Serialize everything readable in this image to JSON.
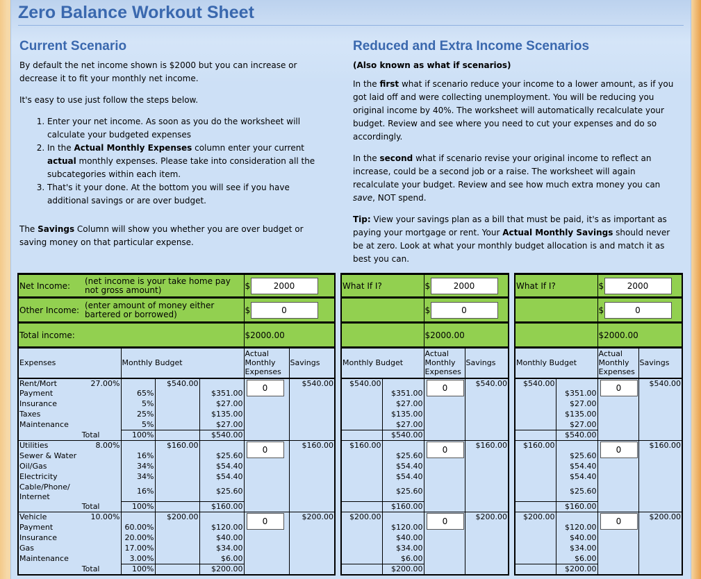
{
  "title": "Zero Balance Workout Sheet",
  "left": {
    "heading": "Current Scenario",
    "p1": "By default the net income shown is $2000 but you can increase or decrease it to fit your monthly net income.",
    "p2": "It's easy to use just follow the steps below.",
    "step1": "Enter your net income. As soon as you do the worksheet will calculate your budgeted expenses",
    "step2_a": "In the ",
    "step2_b": "Actual Monthly Expenses",
    "step2_c": " column enter your current ",
    "step2_d": "actual",
    "step2_e": " monthly expenses. Please take into consideration all the subcategories within each item.",
    "step3": "That's it your done. At the bottom you will see if you have additional savings or are over budget.",
    "p3_a": "The ",
    "p3_b": "Savings",
    "p3_c": " Column will show you whether you are over budget or saving money on that particular expense."
  },
  "right": {
    "heading": "Reduced and Extra Income Scenarios",
    "sub": "(Also known as what if scenarios)",
    "p1_a": "In the ",
    "p1_b": "first",
    "p1_c": " what if scenario reduce your income to a lower amount, as if you got laid off and were collecting unemployment. You will be reducing you original income by 40%. The worksheet will automatically recalculate your budget. Review and see where you need to cut your expenses and do so accordingly.",
    "p2_a": "In the ",
    "p2_b": "second",
    "p2_c": " what if scenario revise your original income to reflect an increase, could be a second job or a raise. The worksheet will again recalculate your budget. Review and see how much extra money you can ",
    "p2_d": "save",
    "p2_e": ", NOT spend.",
    "p3_a": "Tip:",
    "p3_b": " View your savings plan as a bill that must be paid, it's as important as paying your mortgage or rent. Your ",
    "p3_c": "Actual Monthly Savings",
    "p3_d": " should never be at zero. Look at what your monthly budget allocation is and match it as best you can."
  },
  "current": {
    "net_label": "Net Income:",
    "net_note": "(net income is your take home pay not gross amount)",
    "net_value": "2000",
    "other_label": "Other Income:",
    "other_note": "(enter amount of money either bartered or borrowed)",
    "other_value": "0",
    "currency": "$",
    "total_label": "Total income:",
    "total_value": "$2000.00",
    "h_expenses": "Expenses",
    "h_budget": "Monthly Budget",
    "h_actual": "Actual Monthly Expenses",
    "h_savings": "Savings",
    "groups": [
      {
        "name": "Rent/Mort",
        "pct": "27.00%",
        "amount": "$540.00",
        "actual": "0",
        "savings": "$540.00",
        "items": [
          {
            "name": "Payment",
            "pct": "65%",
            "amount": "$351.00"
          },
          {
            "name": "Insurance",
            "pct": "5%",
            "amount": "$27.00"
          },
          {
            "name": "Taxes",
            "pct": "25%",
            "amount": "$135.00"
          },
          {
            "name": "Maintenance",
            "pct": "5%",
            "amount": "$27.00"
          }
        ],
        "total_label": "Total",
        "total_pct": "100%",
        "total_amount": "$540.00"
      },
      {
        "name": "Utilities",
        "pct": "8.00%",
        "amount": "$160.00",
        "actual": "0",
        "savings": "$160.00",
        "items": [
          {
            "name": "Sewer & Water",
            "pct": "16%",
            "amount": "$25.60"
          },
          {
            "name": "Oil/Gas",
            "pct": "34%",
            "amount": "$54.40"
          },
          {
            "name": "Electricity",
            "pct": "34%",
            "amount": "$54.40"
          },
          {
            "name": "Cable/Phone/ Internet",
            "pct": "16%",
            "amount": "$25.60",
            "wrap": true
          }
        ],
        "total_label": "Total",
        "total_pct": "100%",
        "total_amount": "$160.00"
      },
      {
        "name": "Vehicle",
        "pct": "10.00%",
        "amount": "$200.00",
        "actual": "0",
        "savings": "$200.00",
        "items": [
          {
            "name": "Payment",
            "pct": "60.00%",
            "amount": "$120.00"
          },
          {
            "name": "Insurance",
            "pct": "20.00%",
            "amount": "$40.00"
          },
          {
            "name": "Gas",
            "pct": "17.00%",
            "amount": "$34.00"
          },
          {
            "name": "Maintenance",
            "pct": "3.00%",
            "amount": "$6.00"
          }
        ],
        "total_label": "Total",
        "total_pct": "100%",
        "total_amount": "$200.00"
      }
    ]
  },
  "scenarios": [
    {
      "label": "What If I?",
      "currency": "$",
      "income_value": "2000",
      "other_value": "0",
      "total_value": "$2000.00",
      "h_budget": "Monthly Budget",
      "h_actual": "Actual Monthly Expenses",
      "h_savings": "Savings",
      "groups": [
        {
          "amount": "$540.00",
          "actual": "0",
          "savings": "$540.00",
          "items": [
            "$351.00",
            "$27.00",
            "$135.00",
            "$27.00"
          ],
          "total_amount": "$540.00"
        },
        {
          "amount": "$160.00",
          "actual": "0",
          "savings": "$160.00",
          "items": [
            "$25.60",
            "$54.40",
            "$54.40",
            "$25.60"
          ],
          "total_amount": "$160.00"
        },
        {
          "amount": "$200.00",
          "actual": "0",
          "savings": "$200.00",
          "items": [
            "$120.00",
            "$40.00",
            "$34.00",
            "$6.00"
          ],
          "total_amount": "$200.00"
        }
      ]
    },
    {
      "label": "What If I?",
      "currency": "$",
      "income_value": "2000",
      "other_value": "0",
      "total_value": "$2000.00",
      "h_budget": "Monthly Budget",
      "h_actual": "Actual Monthly Expenses",
      "h_savings": "Savings",
      "groups": [
        {
          "amount": "$540.00",
          "actual": "0",
          "savings": "$540.00",
          "items": [
            "$351.00",
            "$27.00",
            "$135.00",
            "$27.00"
          ],
          "total_amount": "$540.00"
        },
        {
          "amount": "$160.00",
          "actual": "0",
          "savings": "$160.00",
          "items": [
            "$25.60",
            "$54.40",
            "$54.40",
            "$25.60"
          ],
          "total_amount": "$160.00"
        },
        {
          "amount": "$200.00",
          "actual": "0",
          "savings": "$200.00",
          "items": [
            "$120.00",
            "$40.00",
            "$34.00",
            "$6.00"
          ],
          "total_amount": "$200.00"
        }
      ]
    }
  ]
}
